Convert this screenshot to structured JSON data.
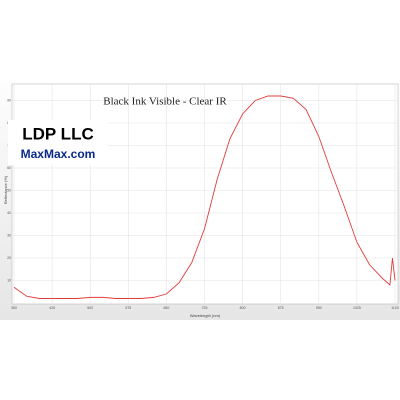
{
  "chart_data": {
    "type": "line",
    "title": "Black Ink Visible - Clear IR",
    "logo_title": "LDP LLC",
    "logo_subtitle": "MaxMax.com",
    "x_label": "Wavelength (nm)",
    "y_label": "Reflectance (%)",
    "x": [
      350,
      375,
      400,
      425,
      450,
      475,
      500,
      525,
      550,
      575,
      600,
      625,
      650,
      675,
      700,
      725,
      750,
      775,
      800,
      825,
      850,
      875,
      900,
      925,
      950,
      975,
      1000,
      1025,
      1050,
      1075,
      1090,
      1095,
      1100
    ],
    "series": [
      {
        "name": "Black Ink",
        "color": "#e03c3c",
        "values": [
          7,
          3,
          2,
          2,
          2,
          2,
          2.5,
          2.5,
          2,
          2,
          2,
          2.5,
          4,
          9,
          18,
          33,
          55,
          73,
          84,
          90,
          92,
          92,
          91,
          86,
          74,
          58,
          43,
          27,
          17,
          11,
          8,
          20,
          10
        ]
      }
    ],
    "xlim": [
      350,
      1100
    ],
    "xticks": [
      350,
      425,
      500,
      575,
      650,
      725,
      800,
      875,
      950,
      1025,
      1100
    ],
    "ylim": [
      0,
      100
    ],
    "yticks": [
      10,
      20,
      30,
      40,
      50,
      60,
      70,
      80,
      90
    ],
    "grid": true
  }
}
